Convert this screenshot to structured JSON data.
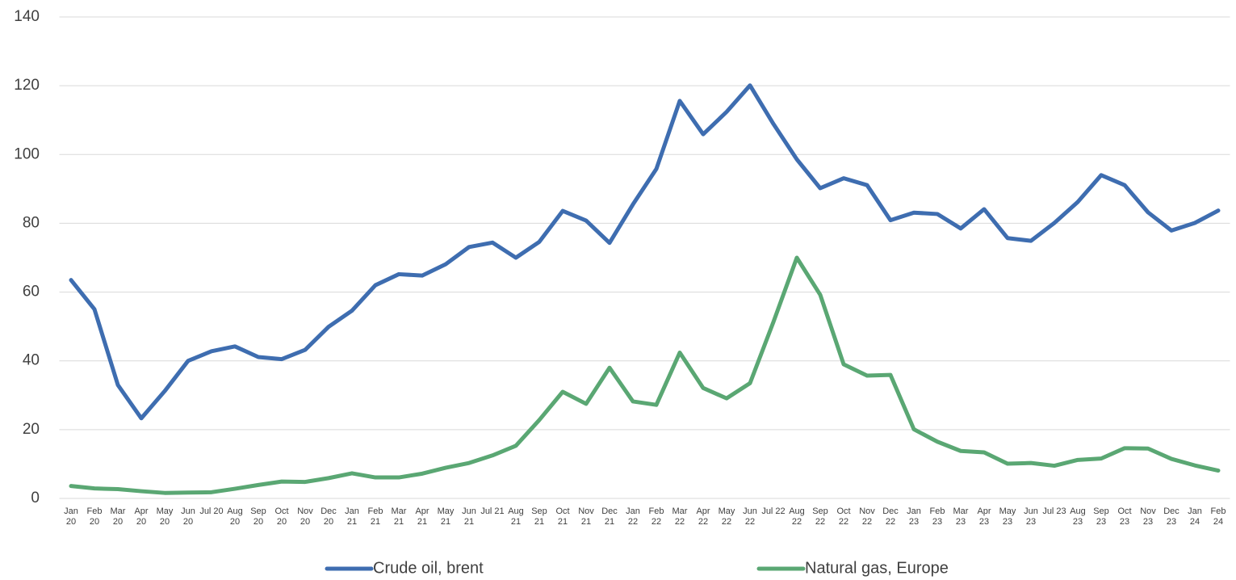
{
  "chart_data": {
    "type": "line",
    "categories": [
      "Jan 20",
      "Feb 20",
      "Mar 20",
      "Apr 20",
      "May 20",
      "Jun 20",
      "Jul 20",
      "Aug 20",
      "Sep 20",
      "Oct 20",
      "Nov 20",
      "Dec 20",
      "Jan 21",
      "Feb 21",
      "Mar 21",
      "Apr 21",
      "May 21",
      "Jun 21",
      "Jul 21",
      "Aug 21",
      "Sep 21",
      "Oct 21",
      "Nov 21",
      "Dec 21",
      "Jan 22",
      "Feb 22",
      "Mar 22",
      "Apr 22",
      "May 22",
      "Jun 22",
      "Jul 22",
      "Aug 22",
      "Sep 22",
      "Oct 22",
      "Nov 22",
      "Dec 22",
      "Jan 23",
      "Feb 23",
      "Mar 23",
      "Apr 23",
      "May 23",
      "Jun 23",
      "Jul 23",
      "Aug 23",
      "Sep 23",
      "Oct 23",
      "Nov 23",
      "Dec 23",
      "Jan 24",
      "Feb 24"
    ],
    "series": [
      {
        "name": "Crude oil, brent",
        "color": "#3e6db0",
        "values": [
          63.5,
          55,
          33,
          23.3,
          31.2,
          40,
          42.8,
          44.2,
          41.1,
          40.5,
          43.2,
          49.9,
          54.6,
          62,
          65.2,
          64.8,
          68.1,
          73.1,
          74.4,
          70,
          74.6,
          83.6,
          80.8,
          74.3,
          85.5,
          95.8,
          115.6,
          105.9,
          112.4,
          120.1,
          108.9,
          98.6,
          90.2,
          93.1,
          91.1,
          80.9,
          83.1,
          82.7,
          78.5,
          84.1,
          75.7,
          74.9,
          80.1,
          86.2,
          94,
          91.1,
          83.2,
          77.9,
          80.1,
          83.7
        ]
      },
      {
        "name": "Natural gas, Europe",
        "color": "#5aa773",
        "values": [
          3.6,
          2.9,
          2.7,
          2.1,
          1.6,
          1.7,
          1.8,
          2.8,
          3.9,
          4.9,
          4.8,
          5.9,
          7.3,
          6.1,
          6.1,
          7.2,
          8.9,
          10.3,
          12.5,
          15.3,
          22.8,
          31,
          27.5,
          38,
          28.2,
          27.2,
          42.4,
          32.1,
          29.1,
          33.5,
          51.3,
          70,
          59.2,
          39,
          35.7,
          35.9,
          20.1,
          16.5,
          13.8,
          13.4,
          10.1,
          10.3,
          9.5,
          11.2,
          11.6,
          14.6,
          14.5,
          11.5,
          9.6,
          8.1
        ]
      }
    ],
    "ylim": [
      0,
      140
    ],
    "yticks": [
      0,
      20,
      40,
      60,
      80,
      100,
      120,
      140
    ],
    "grid": true,
    "legend": "bottom"
  }
}
